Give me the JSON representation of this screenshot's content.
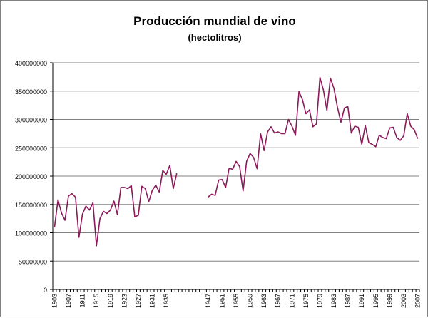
{
  "chart_data": {
    "type": "line",
    "title": "Producción mundial de vino",
    "subtitle": "(hectolitros)",
    "xlabel": "",
    "ylabel": "",
    "ylim": [
      0,
      400000000
    ],
    "grid": true,
    "legend": "none",
    "line_color": "#8B1A5A",
    "y_ticks": [
      "0",
      "50000000",
      "100000000",
      "150000000",
      "200000000",
      "250000000",
      "300000000",
      "350000000",
      "400000000"
    ],
    "x_ticks": [
      "1903",
      "1907",
      "1911",
      "1915",
      "1919",
      "1923",
      "1927",
      "1931",
      "1935",
      "1947",
      "1951",
      "1955",
      "1959",
      "1963",
      "1967",
      "1971",
      "1975",
      "1979",
      "1983",
      "1987",
      "1991",
      "1995",
      "1999",
      "2003",
      "2007"
    ],
    "x_categories": [
      "1903",
      "1904",
      "1905",
      "1906",
      "1907",
      "1908",
      "1909",
      "1910",
      "1911",
      "1912",
      "1913",
      "1914",
      "1915",
      "1916",
      "1917",
      "1918",
      "1919",
      "1920",
      "1921",
      "1922",
      "1923",
      "1924",
      "1925",
      "1926",
      "1927",
      "1928",
      "1929",
      "1930",
      "1931",
      "1932",
      "1933",
      "1934",
      "1935",
      "1936",
      "1937",
      "1938",
      "1939",
      "1940",
      "1941",
      "1942",
      "1943",
      "1944",
      "1945",
      "1946",
      "1947",
      "1948",
      "1949",
      "1950",
      "1951",
      "1952",
      "1953",
      "1954",
      "1955",
      "1956",
      "1957",
      "1958",
      "1959",
      "1960",
      "1961",
      "1962",
      "1963",
      "1964",
      "1965",
      "1966",
      "1967",
      "1968",
      "1969",
      "1970",
      "1971",
      "1972",
      "1973",
      "1974",
      "1975",
      "1976",
      "1977",
      "1978",
      "1979",
      "1980",
      "1981",
      "1982",
      "1983",
      "1984",
      "1985",
      "1986",
      "1987",
      "1988",
      "1989",
      "1990",
      "1991",
      "1992",
      "1993",
      "1994",
      "1995",
      "1996",
      "1997",
      "1998",
      "1999",
      "2000",
      "2001",
      "2002",
      "2003",
      "2004",
      "2005",
      "2006",
      "2007"
    ],
    "values": [
      110000000,
      158000000,
      135000000,
      122000000,
      165000000,
      169000000,
      163000000,
      92000000,
      133000000,
      147000000,
      140000000,
      153000000,
      77000000,
      125000000,
      138000000,
      134000000,
      140000000,
      156000000,
      132000000,
      180000000,
      180000000,
      178000000,
      183000000,
      128000000,
      131000000,
      182000000,
      178000000,
      155000000,
      175000000,
      184000000,
      172000000,
      210000000,
      203000000,
      219000000,
      178000000,
      205000000,
      null,
      null,
      null,
      null,
      null,
      null,
      null,
      null,
      163000000,
      168000000,
      166000000,
      193000000,
      194000000,
      180000000,
      214000000,
      212000000,
      226000000,
      217000000,
      174000000,
      226000000,
      240000000,
      233000000,
      213000000,
      275000000,
      245000000,
      278000000,
      287000000,
      276000000,
      278000000,
      275000000,
      275000000,
      300000000,
      288000000,
      272000000,
      349000000,
      335000000,
      310000000,
      317000000,
      287000000,
      292000000,
      374000000,
      352000000,
      316000000,
      373000000,
      355000000,
      322000000,
      295000000,
      320000000,
      323000000,
      276000000,
      288000000,
      286000000,
      256000000,
      289000000,
      259000000,
      256000000,
      252000000,
      272000000,
      268000000,
      266000000,
      285000000,
      286000000,
      268000000,
      263000000,
      271000000,
      310000000,
      288000000,
      282000000,
      266000000
    ]
  }
}
